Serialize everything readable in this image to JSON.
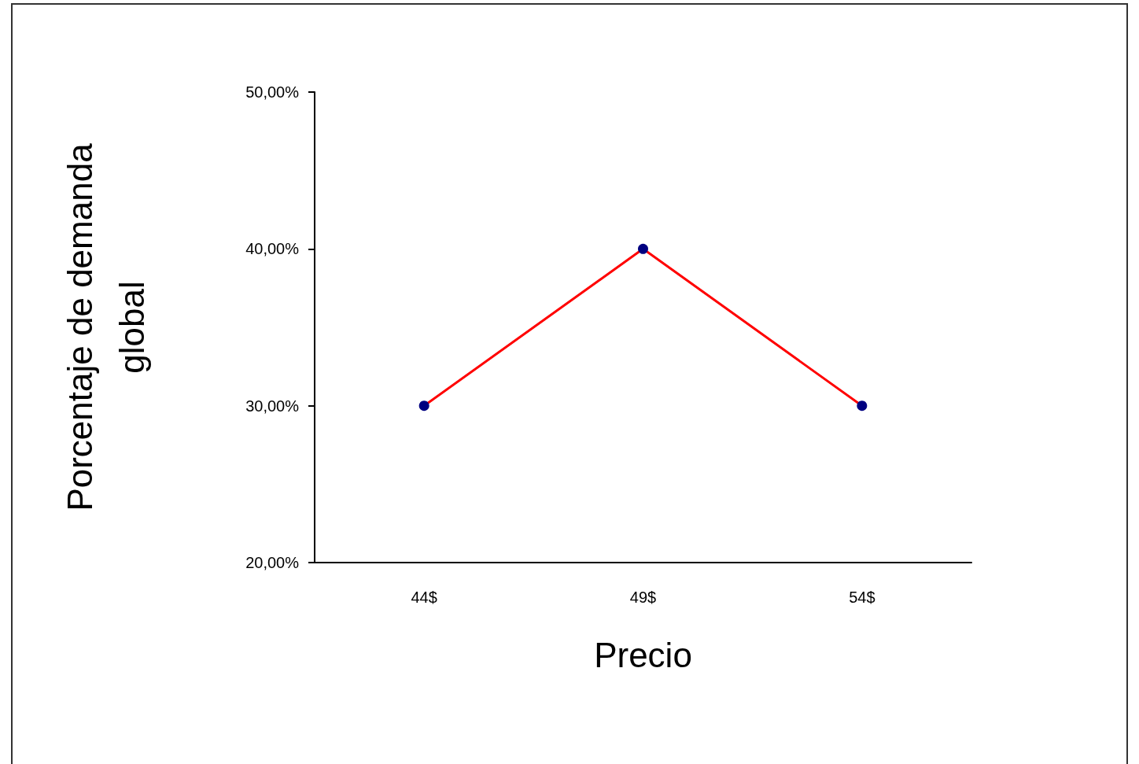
{
  "chart_data": {
    "type": "line",
    "xlabel": "Precio",
    "ylabel": "Porcentaje de demanda global",
    "categories": [
      "44$",
      "49$",
      "54$"
    ],
    "series": [
      {
        "color": "#ff0000",
        "values": [
          30,
          40,
          30
        ]
      }
    ],
    "marker": "circle",
    "line_style": "solid",
    "ylim": [
      20,
      50
    ],
    "yticks": [
      {
        "value": 20,
        "label": "20,00%"
      },
      {
        "value": 30,
        "label": "30,00%"
      },
      {
        "value": 40,
        "label": "40,00%"
      },
      {
        "value": 50,
        "label": "50,00%"
      }
    ]
  }
}
